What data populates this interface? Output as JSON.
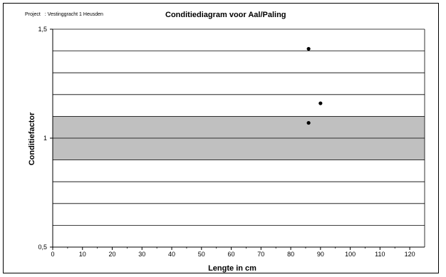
{
  "header": {
    "project_label": "Project",
    "project_value": ": Vestinggracht 1 Heusden"
  },
  "chart_data": {
    "type": "scatter",
    "title": "Conditiediagram voor Aal/Paling",
    "xlabel": "Lengte in cm",
    "ylabel": "Conditiefactor",
    "xlim": [
      0,
      125
    ],
    "ylim": [
      0.5,
      1.5
    ],
    "x_ticks": [
      "0",
      "10",
      "20",
      "30",
      "40",
      "50",
      "60",
      "70",
      "80",
      "90",
      "100",
      "110",
      "120"
    ],
    "y_tick_labels": [
      {
        "value": 1.5,
        "label": "1,5"
      },
      {
        "value": 1.0,
        "label": "1"
      },
      {
        "value": 0.5,
        "label": "0,5"
      }
    ],
    "horizontal_gridlines": [
      0.6,
      0.7,
      0.8,
      0.9,
      1.0,
      1.1,
      1.2,
      1.3,
      1.4
    ],
    "shaded_band": {
      "y_from": 0.9,
      "y_to": 1.1,
      "color": "#c0c0c0"
    },
    "series": [
      {
        "points": [
          [
            86,
            1.41
          ],
          [
            90,
            1.16
          ],
          [
            86,
            1.07
          ]
        ],
        "color": "#000000"
      }
    ]
  }
}
